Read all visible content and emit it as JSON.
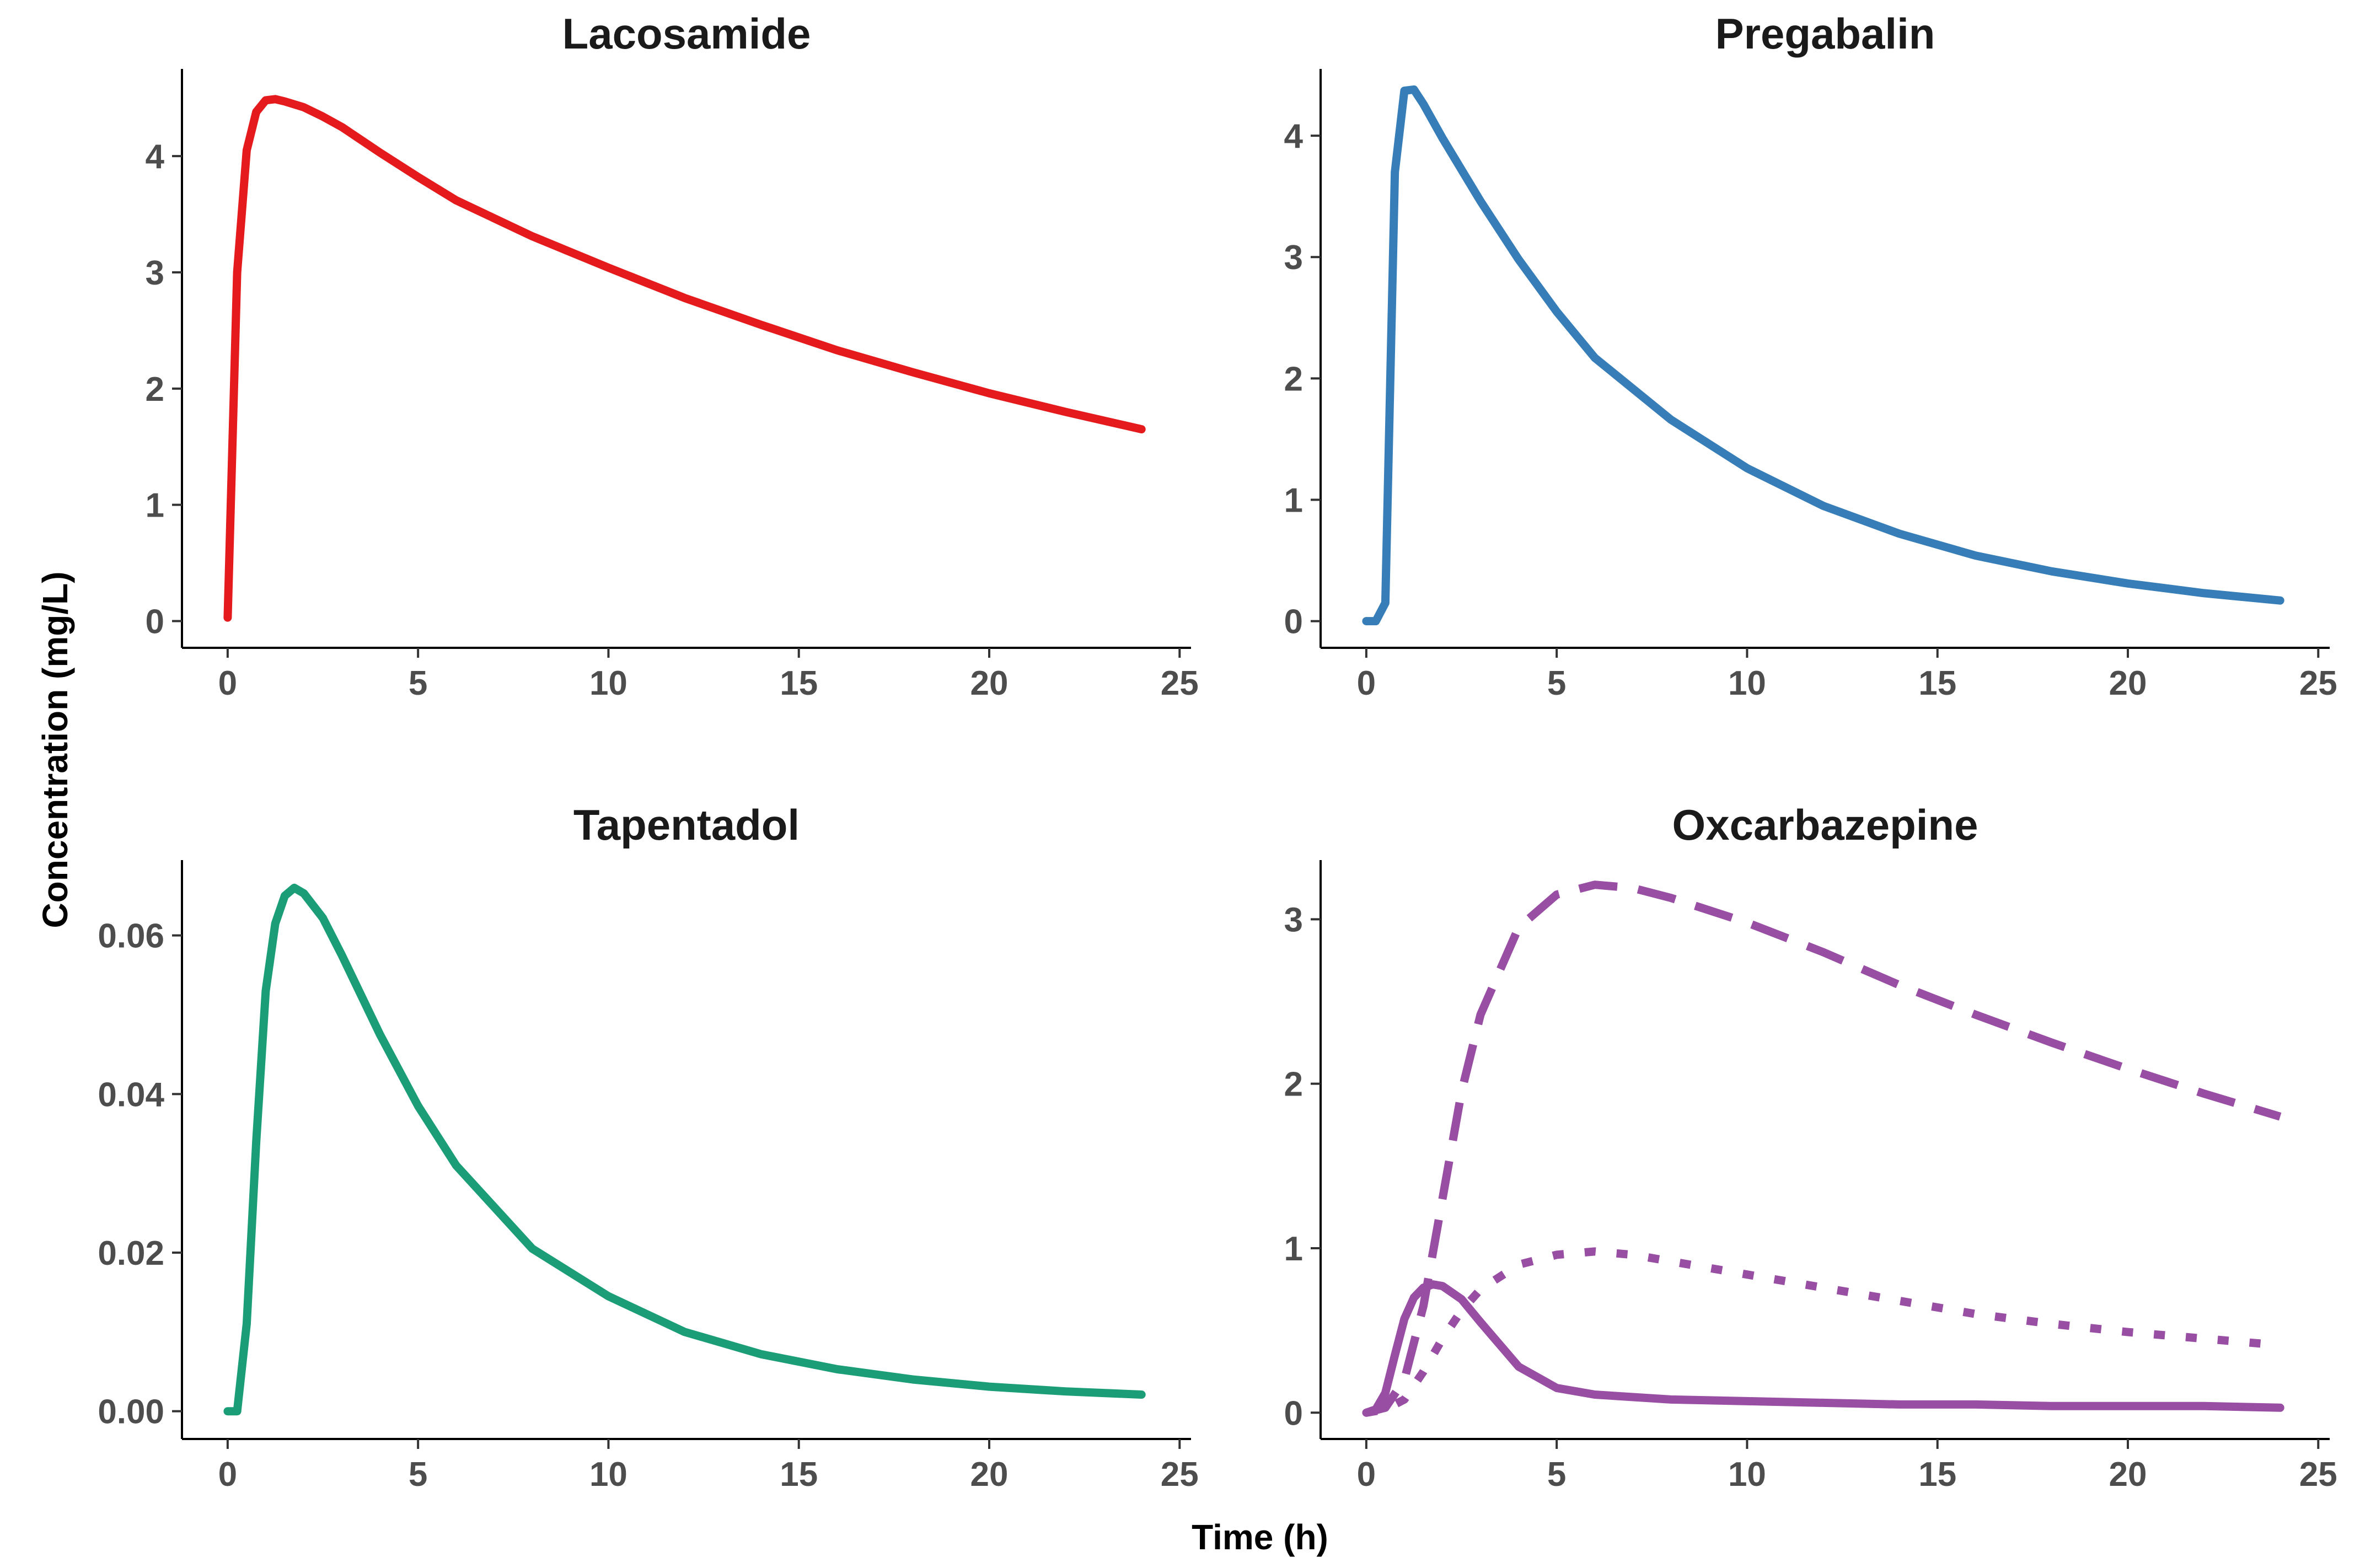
{
  "figure": {
    "ylabel": "Concentration (mg/L)",
    "xlabel": "Time (h)"
  },
  "chart_data": [
    {
      "type": "line",
      "title": "Lacosamide",
      "xlabel": "Time (h)",
      "ylabel": "Concentration (mg/L)",
      "xlim": [
        -1.2,
        25.3
      ],
      "ylim": [
        -0.23,
        4.75
      ],
      "xticks": [
        0,
        5,
        10,
        15,
        20,
        25
      ],
      "yticks": [
        0,
        1,
        2,
        3,
        4
      ],
      "ytick_labels": [
        "0",
        "1",
        "2",
        "3",
        "4"
      ],
      "series": [
        {
          "name": "Lacosamide",
          "color": "#e41a1c",
          "dash": "solid",
          "x": [
            0,
            0.25,
            0.5,
            0.75,
            1,
            1.25,
            1.5,
            2,
            2.5,
            3,
            4,
            5,
            6,
            8,
            10,
            12,
            14,
            16,
            18,
            20,
            22,
            24
          ],
          "y": [
            0.03,
            3.0,
            4.05,
            4.38,
            4.48,
            4.49,
            4.47,
            4.42,
            4.34,
            4.25,
            4.03,
            3.82,
            3.62,
            3.31,
            3.04,
            2.78,
            2.55,
            2.33,
            2.14,
            1.96,
            1.8,
            1.65
          ]
        }
      ]
    },
    {
      "type": "line",
      "title": "Pregabalin",
      "xlabel": "Time (h)",
      "ylabel": "Concentration (mg/L)",
      "xlim": [
        -1.2,
        25.3
      ],
      "ylim": [
        -0.22,
        4.55
      ],
      "xticks": [
        0,
        5,
        10,
        15,
        20,
        25
      ],
      "yticks": [
        0,
        1,
        2,
        3,
        4
      ],
      "ytick_labels": [
        "0",
        "1",
        "2",
        "3",
        "4"
      ],
      "series": [
        {
          "name": "Pregabalin",
          "color": "#377eb8",
          "dash": "solid",
          "x": [
            0,
            0.25,
            0.5,
            0.75,
            1,
            1.25,
            1.5,
            2,
            2.5,
            3,
            4,
            5,
            6,
            8,
            10,
            12,
            14,
            16,
            18,
            20,
            22,
            24
          ],
          "y": [
            0,
            0,
            0.15,
            3.7,
            4.37,
            4.38,
            4.26,
            3.98,
            3.72,
            3.46,
            2.98,
            2.55,
            2.17,
            1.66,
            1.26,
            0.95,
            0.72,
            0.54,
            0.41,
            0.31,
            0.23,
            0.17
          ]
        }
      ]
    },
    {
      "type": "line",
      "title": "Tapentadol",
      "xlabel": "Time (h)",
      "ylabel": "Concentration (mg/L)",
      "xlim": [
        -1.2,
        25.3
      ],
      "ylim": [
        -0.0035,
        0.0695
      ],
      "xticks": [
        0,
        5,
        10,
        15,
        20,
        25
      ],
      "yticks": [
        0,
        0.02,
        0.04,
        0.06
      ],
      "ytick_labels": [
        "0.00",
        "0.02",
        "0.04",
        "0.06"
      ],
      "series": [
        {
          "name": "Tapentadol",
          "color": "#1b9e77",
          "dash": "solid",
          "x": [
            0,
            0.25,
            0.5,
            0.75,
            1,
            1.25,
            1.5,
            1.75,
            2,
            2.5,
            3,
            4,
            5,
            6,
            8,
            10,
            12,
            14,
            16,
            18,
            20,
            22,
            24
          ],
          "y": [
            0,
            0,
            0.011,
            0.034,
            0.053,
            0.0615,
            0.065,
            0.066,
            0.0653,
            0.0622,
            0.0575,
            0.0475,
            0.0385,
            0.031,
            0.0205,
            0.0145,
            0.01,
            0.0072,
            0.0053,
            0.004,
            0.0031,
            0.0025,
            0.0021
          ]
        }
      ]
    },
    {
      "type": "line",
      "title": "Oxcarbazepine",
      "xlabel": "Time (h)",
      "ylabel": "Concentration (mg/L)",
      "xlim": [
        -1.2,
        25.3
      ],
      "ylim": [
        -0.16,
        3.36
      ],
      "xticks": [
        0,
        5,
        10,
        15,
        20,
        25
      ],
      "yticks": [
        0,
        1,
        2,
        3
      ],
      "ytick_labels": [
        "0",
        "1",
        "2",
        "3"
      ],
      "series": [
        {
          "name": "Oxcarbazepine (solid)",
          "color": "#984ea3",
          "dash": "solid",
          "x": [
            0,
            0.25,
            0.5,
            0.75,
            1,
            1.25,
            1.5,
            1.75,
            2,
            2.5,
            3,
            4,
            5,
            6,
            8,
            10,
            12,
            14,
            16,
            18,
            20,
            22,
            24
          ],
          "y": [
            0,
            0.02,
            0.12,
            0.35,
            0.57,
            0.7,
            0.76,
            0.78,
            0.77,
            0.69,
            0.55,
            0.28,
            0.15,
            0.11,
            0.08,
            0.07,
            0.06,
            0.05,
            0.05,
            0.04,
            0.04,
            0.04,
            0.03
          ]
        },
        {
          "name": "Oxcarbazepine (dashed)",
          "color": "#984ea3",
          "dash": "dashed",
          "x": [
            0,
            0.5,
            1,
            1.5,
            2,
            2.5,
            3,
            4,
            5,
            6,
            7,
            8,
            10,
            12,
            14,
            16,
            18,
            20,
            22,
            24
          ],
          "y": [
            0,
            0.03,
            0.2,
            0.65,
            1.3,
            1.95,
            2.42,
            2.95,
            3.15,
            3.21,
            3.19,
            3.13,
            2.98,
            2.8,
            2.6,
            2.42,
            2.25,
            2.09,
            1.94,
            1.8
          ]
        },
        {
          "name": "Oxcarbazepine (dotted)",
          "color": "#984ea3",
          "dash": "dotted",
          "x": [
            0,
            0.5,
            1,
            1.5,
            2,
            2.5,
            3,
            4,
            5,
            6,
            7,
            8,
            10,
            12,
            14,
            16,
            18,
            20,
            22,
            24
          ],
          "y": [
            0,
            0.02,
            0.08,
            0.25,
            0.45,
            0.62,
            0.75,
            0.9,
            0.96,
            0.98,
            0.96,
            0.92,
            0.84,
            0.76,
            0.68,
            0.6,
            0.54,
            0.49,
            0.45,
            0.41
          ]
        }
      ]
    }
  ]
}
